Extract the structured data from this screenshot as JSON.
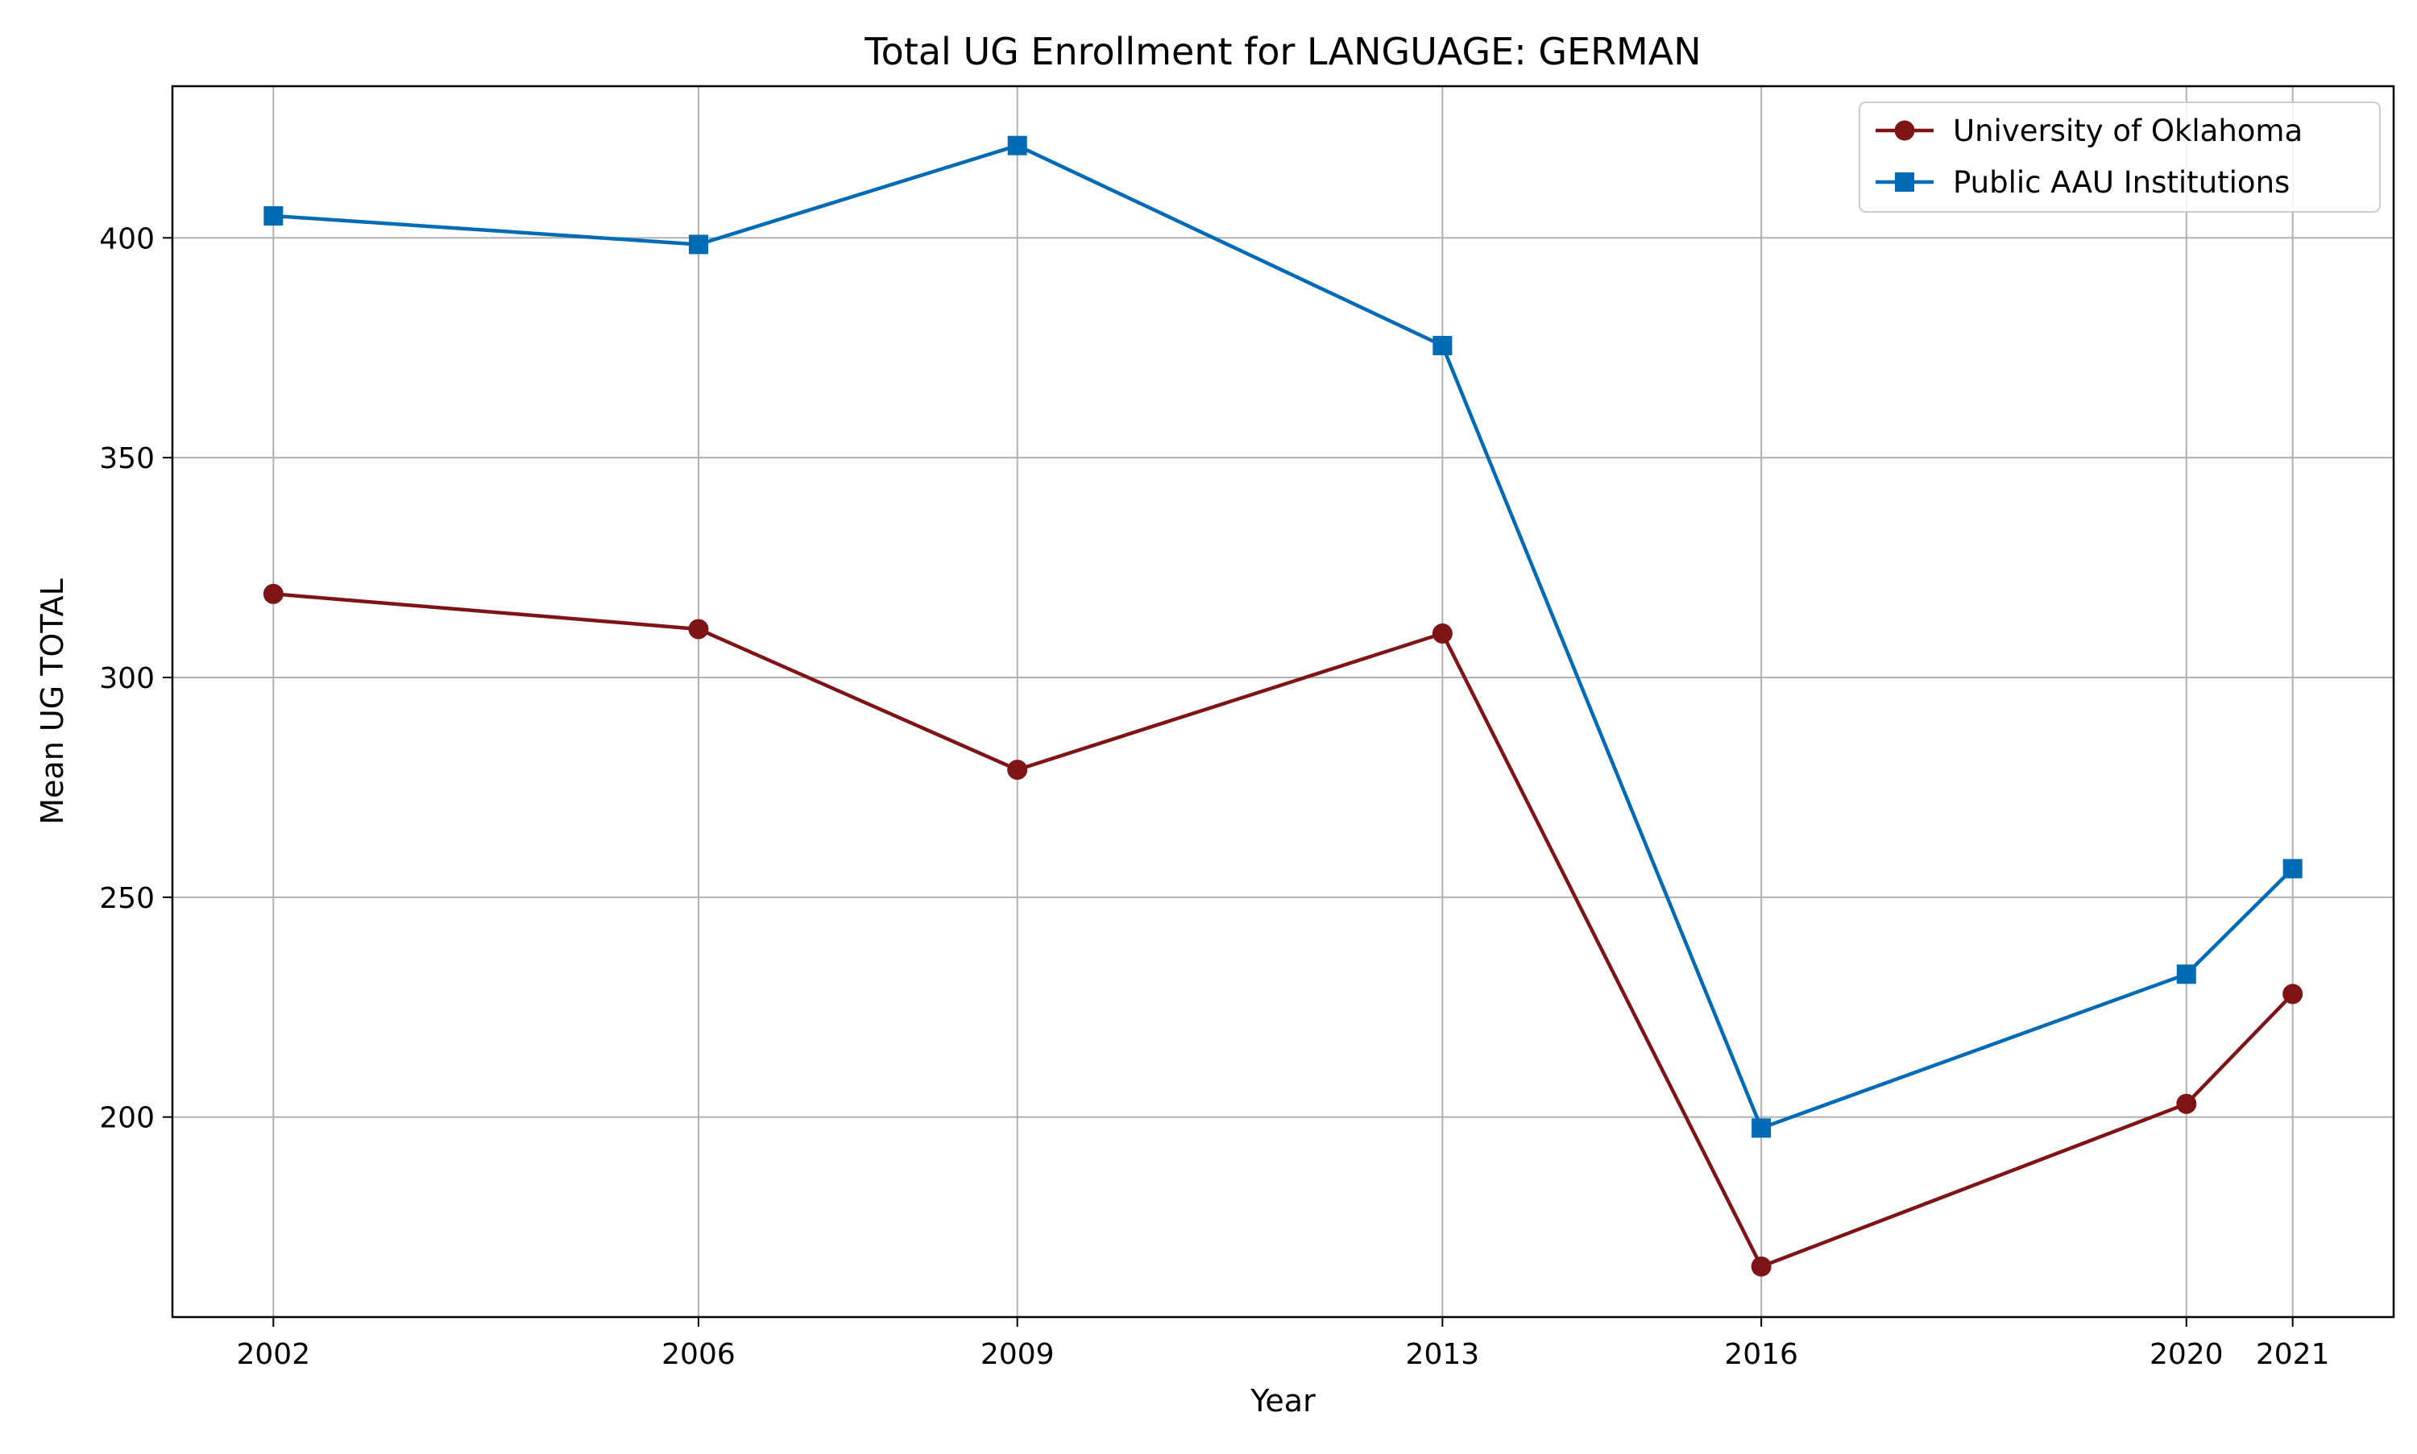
{
  "chart_data": {
    "type": "line",
    "title": "Total UG Enrollment for LANGUAGE: GERMAN",
    "xlabel": "Year",
    "ylabel": "Mean UG TOTAL",
    "x": [
      2002,
      2006,
      2009,
      2013,
      2016,
      2020,
      2021
    ],
    "x_tick_labels": [
      "2002",
      "2006",
      "2009",
      "2013",
      "2016",
      "2020",
      "2021"
    ],
    "y_ticks": [
      200,
      250,
      300,
      350,
      400
    ],
    "y_tick_labels": [
      "200",
      "250",
      "300",
      "350",
      "400"
    ],
    "xlim": [
      2001.05,
      2021.95
    ],
    "ylim": [
      154.5,
      434.5
    ],
    "grid": true,
    "legend_position": "top-right",
    "series": [
      {
        "name": "University of Oklahoma",
        "color": "#7f1416",
        "marker": "circle",
        "values": [
          319,
          311,
          279,
          310,
          166,
          203,
          228
        ]
      },
      {
        "name": "Public AAU Institutions",
        "color": "#006bb5",
        "marker": "square",
        "values": [
          405,
          398.5,
          421,
          375.5,
          197.5,
          232.5,
          256.5
        ]
      }
    ]
  }
}
